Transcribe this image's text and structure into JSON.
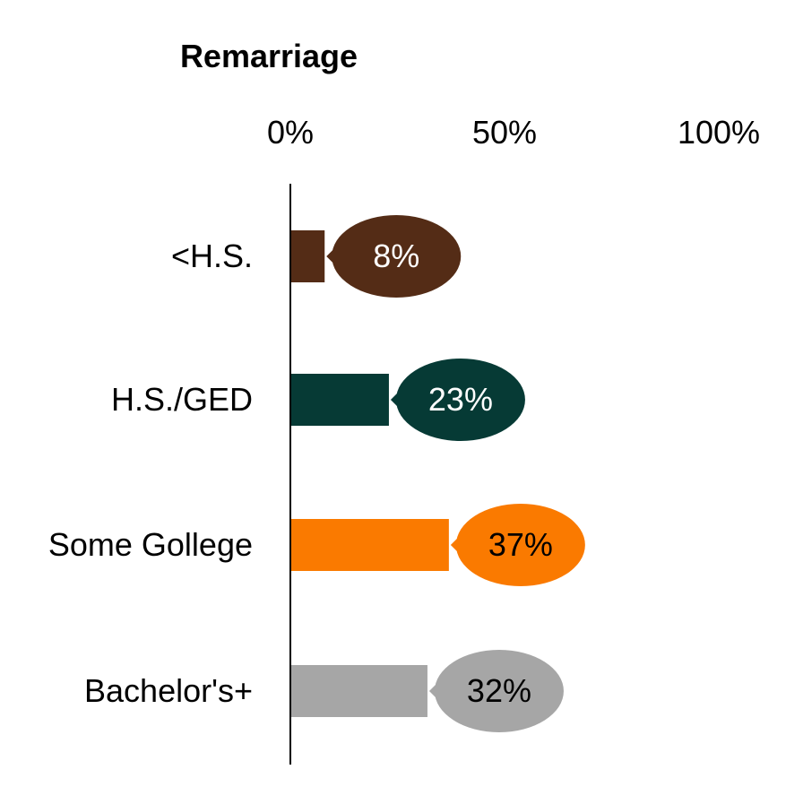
{
  "chart_data": {
    "type": "bar",
    "orientation": "horizontal",
    "title": "Remarriage",
    "categories": [
      "<H.S.",
      "H.S./GED",
      "Some Gollege",
      "Bachelor's+"
    ],
    "values": [
      8,
      23,
      37,
      32
    ],
    "data_labels": [
      "8%",
      "23%",
      "37%",
      "32%"
    ],
    "colors": [
      "#542c16",
      "#063a35",
      "#fa7a00",
      "#a6a6a6"
    ],
    "label_text_colors": [
      "#ffffff",
      "#ffffff",
      "#000000",
      "#000000"
    ],
    "xlim": [
      0,
      100
    ],
    "xticks": [
      0,
      50,
      100
    ],
    "xtick_labels": [
      "0%",
      "50%",
      "100%"
    ],
    "xlabel": "",
    "ylabel": "",
    "grid": false,
    "legend": "none"
  }
}
